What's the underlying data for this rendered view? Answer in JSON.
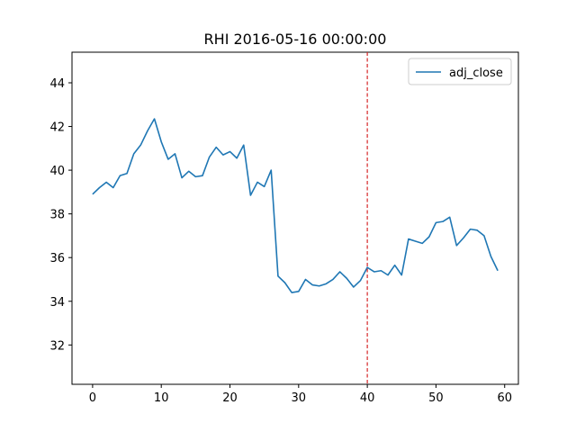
{
  "chart_data": {
    "type": "line",
    "title": "RHI 2016-05-16 00:00:00",
    "xlabel": "",
    "ylabel": "",
    "xlim": [
      -3,
      62
    ],
    "ylim": [
      30.2,
      45.4
    ],
    "xticks": [
      0,
      10,
      20,
      30,
      40,
      50,
      60
    ],
    "yticks": [
      32,
      34,
      36,
      38,
      40,
      42,
      44
    ],
    "grid": false,
    "legend": {
      "position": "upper-right",
      "entries": [
        "adj_close"
      ]
    },
    "series": [
      {
        "name": "adj_close",
        "color": "#1f77b4",
        "x": [
          0,
          1,
          2,
          3,
          4,
          5,
          6,
          7,
          8,
          9,
          10,
          11,
          12,
          13,
          14,
          15,
          16,
          17,
          18,
          19,
          20,
          21,
          22,
          23,
          24,
          25,
          26,
          27,
          28,
          29,
          30,
          31,
          32,
          33,
          34,
          35,
          36,
          37,
          38,
          39,
          40,
          41,
          42,
          43,
          44,
          45,
          46,
          47,
          48,
          49,
          50,
          51,
          52,
          53,
          54,
          55,
          56,
          57,
          58,
          59
        ],
        "values": [
          38.9,
          39.2,
          39.45,
          39.2,
          39.75,
          39.85,
          40.75,
          41.15,
          41.8,
          42.35,
          41.3,
          40.5,
          40.75,
          39.65,
          39.95,
          39.7,
          39.75,
          40.6,
          41.05,
          40.7,
          40.85,
          40.55,
          41.15,
          38.85,
          39.45,
          39.25,
          40.0,
          35.15,
          34.85,
          34.4,
          34.45,
          35.0,
          34.75,
          34.7,
          34.8,
          35.0,
          35.35,
          35.05,
          34.65,
          34.95,
          35.55,
          35.35,
          35.4,
          35.2,
          35.65,
          35.2,
          36.85,
          36.75,
          36.65,
          36.95,
          37.6,
          37.65,
          37.85,
          36.55,
          36.9,
          37.3,
          37.25,
          37.0,
          36.05,
          35.4
        ]
      }
    ],
    "annotations": [
      {
        "type": "vline",
        "x": 40,
        "color": "#d62728",
        "style": "dashed"
      }
    ]
  }
}
